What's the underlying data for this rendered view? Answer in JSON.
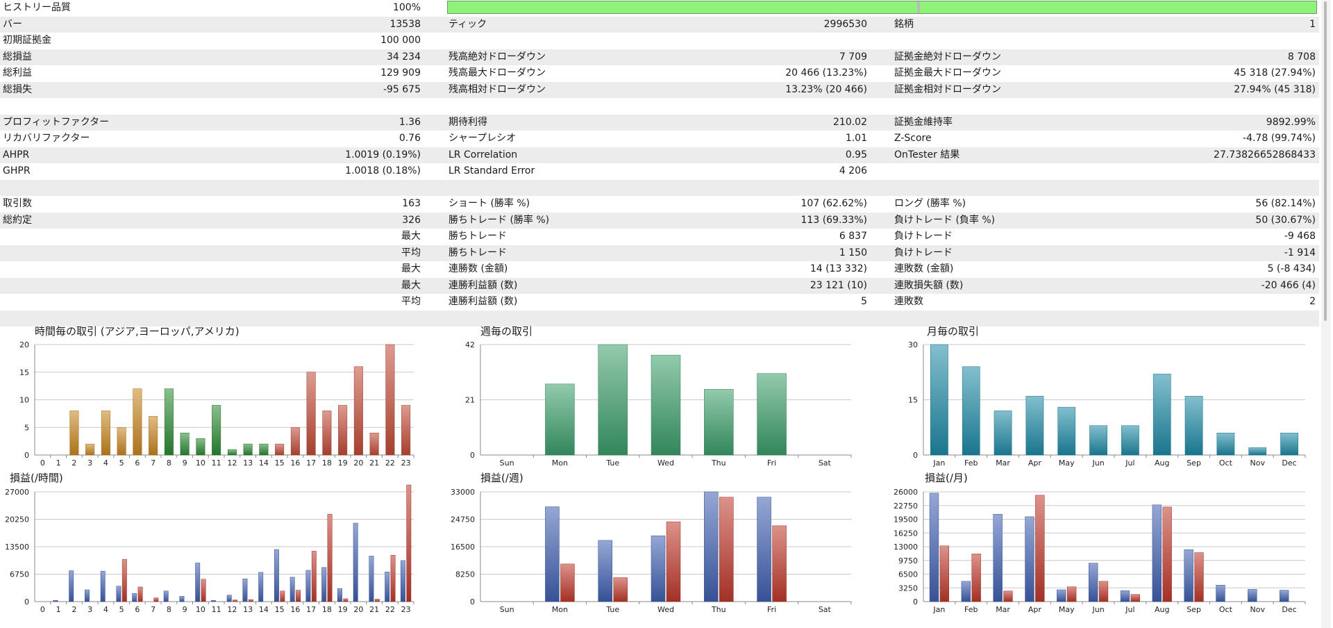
{
  "report": {
    "rows": [
      {
        "cells": [
          {
            "label": "ヒストリー品質",
            "value": "100%"
          }
        ],
        "quality_bar": {
          "fraction": 1.0
        }
      },
      {
        "cells": [
          {
            "label": "バー",
            "value": "13538"
          },
          {
            "label": "ティック",
            "value": "2996530"
          },
          {
            "label": "銘柄",
            "value": "1"
          }
        ]
      },
      {
        "cells": [
          {
            "label": "初期証拠金",
            "value": "100 000"
          }
        ]
      },
      {
        "cells": [
          {
            "label": "総損益",
            "value": "34 234"
          },
          {
            "label": "残高絶対ドローダウン",
            "value": "7 709"
          },
          {
            "label": "証拠金絶対ドローダウン",
            "value": "8 708"
          }
        ]
      },
      {
        "cells": [
          {
            "label": "総利益",
            "value": "129 909"
          },
          {
            "label": "残高最大ドローダウン",
            "value": "20 466 (13.23%)"
          },
          {
            "label": "証拠金最大ドローダウン",
            "value": "45 318 (27.94%)"
          }
        ]
      },
      {
        "cells": [
          {
            "label": "総損失",
            "value": "-95 675"
          },
          {
            "label": "残高相対ドローダウン",
            "value": "13.23% (20 466)"
          },
          {
            "label": "証拠金相対ドローダウン",
            "value": "27.94% (45 318)"
          }
        ]
      },
      {
        "cells": []
      },
      {
        "cells": [
          {
            "label": "プロフィットファクター",
            "value": "1.36"
          },
          {
            "label": "期待利得",
            "value": "210.02"
          },
          {
            "label": "証拠金維持率",
            "value": "9892.99%"
          }
        ]
      },
      {
        "cells": [
          {
            "label": "リカバリファクター",
            "value": "0.76"
          },
          {
            "label": "シャープレシオ",
            "value": "1.01"
          },
          {
            "label": "Z-Score",
            "value": "-4.78 (99.74%)"
          }
        ]
      },
      {
        "cells": [
          {
            "label": "AHPR",
            "value": "1.0019 (0.19%)"
          },
          {
            "label": "LR Correlation",
            "value": "0.95"
          },
          {
            "label": "OnTester 結果",
            "value": "27.73826652868433"
          }
        ]
      },
      {
        "cells": [
          {
            "label": "GHPR",
            "value": "1.0018 (0.18%)"
          },
          {
            "label": "LR Standard Error",
            "value": "4 206"
          }
        ]
      },
      {
        "cells": []
      },
      {
        "cells": [
          {
            "label": "取引数",
            "value": "163"
          },
          {
            "label": "ショート (勝率 %)",
            "value": "107 (62.62%)"
          },
          {
            "label": "ロング (勝率 %)",
            "value": "56 (82.14%)"
          }
        ]
      },
      {
        "cells": [
          {
            "label": "総約定",
            "value": "326"
          },
          {
            "label": "勝ちトレード (勝率 %)",
            "value": "113 (69.33%)"
          },
          {
            "label": "負けトレード (負率 %)",
            "value": "50 (30.67%)"
          }
        ]
      },
      {
        "cells": [
          {
            "label": "",
            "value": "最大"
          },
          {
            "label": "勝ちトレード",
            "value": "6 837"
          },
          {
            "label": "負けトレード",
            "value": "-9 468"
          }
        ]
      },
      {
        "cells": [
          {
            "label": "",
            "value": "平均"
          },
          {
            "label": "勝ちトレード",
            "value": "1 150"
          },
          {
            "label": "負けトレード",
            "value": "-1 914"
          }
        ]
      },
      {
        "cells": [
          {
            "label": "",
            "value": "最大"
          },
          {
            "label": "連勝数 (金額)",
            "value": "14 (13 332)"
          },
          {
            "label": "連敗数 (金額)",
            "value": "5 (-8 434)"
          }
        ]
      },
      {
        "cells": [
          {
            "label": "",
            "value": "最大"
          },
          {
            "label": "連勝利益額 (数)",
            "value": "23 121 (10)"
          },
          {
            "label": "連敗損失額 (数)",
            "value": "-20 466 (4)"
          }
        ]
      },
      {
        "cells": [
          {
            "label": "",
            "value": "平均"
          },
          {
            "label": "連勝利益額 (数)",
            "value": "5"
          },
          {
            "label": "連敗数",
            "value": "2"
          }
        ]
      },
      {
        "cells": []
      }
    ]
  },
  "colors": {
    "asia": "#c8861e",
    "europe": "#2a8a32",
    "america": "#c24a36",
    "weekly": "#3a9e6a",
    "monthly": "#1d8aa6",
    "profit": "#3f5fb0",
    "loss": "#c0392b",
    "grid": "#c9c9c9",
    "quality_bar": "#8ff27a"
  },
  "chart_data": [
    {
      "id": "hourly-trades",
      "type": "bar",
      "title": "時間毎の取引 (アジア,ヨーロッパ,アメリカ)",
      "categories": [
        "0",
        "1",
        "2",
        "3",
        "4",
        "5",
        "6",
        "7",
        "8",
        "9",
        "10",
        "11",
        "12",
        "13",
        "14",
        "15",
        "16",
        "17",
        "18",
        "19",
        "20",
        "21",
        "22",
        "23"
      ],
      "values": [
        0,
        0,
        8,
        2,
        8,
        5,
        12,
        7,
        12,
        4,
        3,
        9,
        1,
        2,
        2,
        2,
        5,
        15,
        8,
        9,
        16,
        4,
        20,
        9
      ],
      "groups": [
        "asia",
        "asia",
        "asia",
        "asia",
        "asia",
        "asia",
        "asia",
        "asia",
        "europe",
        "europe",
        "europe",
        "europe",
        "europe",
        "europe",
        "europe",
        "america",
        "america",
        "america",
        "america",
        "america",
        "america",
        "america",
        "america",
        "america"
      ],
      "ylim": [
        0,
        20
      ],
      "yticks": [
        "0",
        "5",
        "10",
        "15",
        "20"
      ]
    },
    {
      "id": "weekly-trades",
      "type": "bar",
      "title": "週毎の取引",
      "categories": [
        "Sun",
        "Mon",
        "Tue",
        "Wed",
        "Thu",
        "Fri",
        "Sat"
      ],
      "values": [
        0,
        27,
        42,
        38,
        25,
        31,
        0
      ],
      "ylim": [
        0,
        42
      ],
      "yticks": [
        "0",
        "21",
        "42"
      ]
    },
    {
      "id": "monthly-trades",
      "type": "bar",
      "title": "月毎の取引",
      "categories": [
        "Jan",
        "Feb",
        "Mar",
        "Apr",
        "May",
        "Jun",
        "Jul",
        "Aug",
        "Sep",
        "Oct",
        "Nov",
        "Dec"
      ],
      "values": [
        30,
        24,
        12,
        16,
        13,
        8,
        8,
        22,
        16,
        6,
        2,
        6
      ],
      "ylim": [
        0,
        30
      ],
      "yticks": [
        "0",
        "15",
        "30"
      ]
    },
    {
      "id": "hourly-pnl",
      "type": "bar",
      "title": "損益(/時間)",
      "categories": [
        "0",
        "1",
        "2",
        "3",
        "4",
        "5",
        "6",
        "7",
        "8",
        "9",
        "10",
        "11",
        "12",
        "13",
        "14",
        "15",
        "16",
        "17",
        "18",
        "19",
        "20",
        "21",
        "22",
        "23"
      ],
      "series": [
        {
          "values": [
            0,
            300,
            7600,
            2900,
            7500,
            3800,
            2000,
            0,
            2600,
            1300,
            9500,
            300,
            1600,
            5600,
            7200,
            12800,
            6000,
            7700,
            8400,
            3200,
            19300,
            11200,
            7300,
            10100
          ]
        },
        {
          "values": [
            0,
            0,
            0,
            0,
            0,
            10400,
            3600,
            900,
            0,
            0,
            5500,
            0,
            400,
            500,
            0,
            2600,
            2800,
            12400,
            21500,
            700,
            0,
            600,
            11400,
            28700
          ]
        }
      ],
      "ylim": [
        0,
        27000
      ],
      "yticks": [
        "0",
        "6750",
        "13500",
        "20250",
        "27000"
      ]
    },
    {
      "id": "weekly-pnl",
      "type": "bar",
      "title": "損益(/週)",
      "categories": [
        "Sun",
        "Mon",
        "Tue",
        "Wed",
        "Thu",
        "Fri",
        "Sat"
      ],
      "series": [
        {
          "values": [
            0,
            28500,
            18400,
            19800,
            33000,
            31400,
            0
          ]
        },
        {
          "values": [
            0,
            11300,
            7200,
            24000,
            31400,
            22800,
            0
          ]
        }
      ],
      "ylim": [
        0,
        33000
      ],
      "yticks": [
        "0",
        "8250",
        "16500",
        "24750",
        "33000"
      ]
    },
    {
      "id": "monthly-pnl",
      "type": "bar",
      "title": "損益(/月)",
      "categories": [
        "Jan",
        "Feb",
        "Mar",
        "Apr",
        "May",
        "Jun",
        "Jul",
        "Aug",
        "Sep",
        "Oct",
        "Nov",
        "Dec"
      ],
      "series": [
        {
          "values": [
            25700,
            4800,
            20700,
            20100,
            2800,
            9100,
            2600,
            22900,
            12300,
            3900,
            2900,
            2700
          ]
        },
        {
          "values": [
            13200,
            11300,
            2500,
            25200,
            3500,
            4800,
            1700,
            22400,
            11600,
            0,
            0,
            0
          ]
        }
      ],
      "ylim": [
        0,
        26000
      ],
      "yticks": [
        "0",
        "3250",
        "6500",
        "9750",
        "13000",
        "16250",
        "19500",
        "22750",
        "26000"
      ]
    }
  ]
}
